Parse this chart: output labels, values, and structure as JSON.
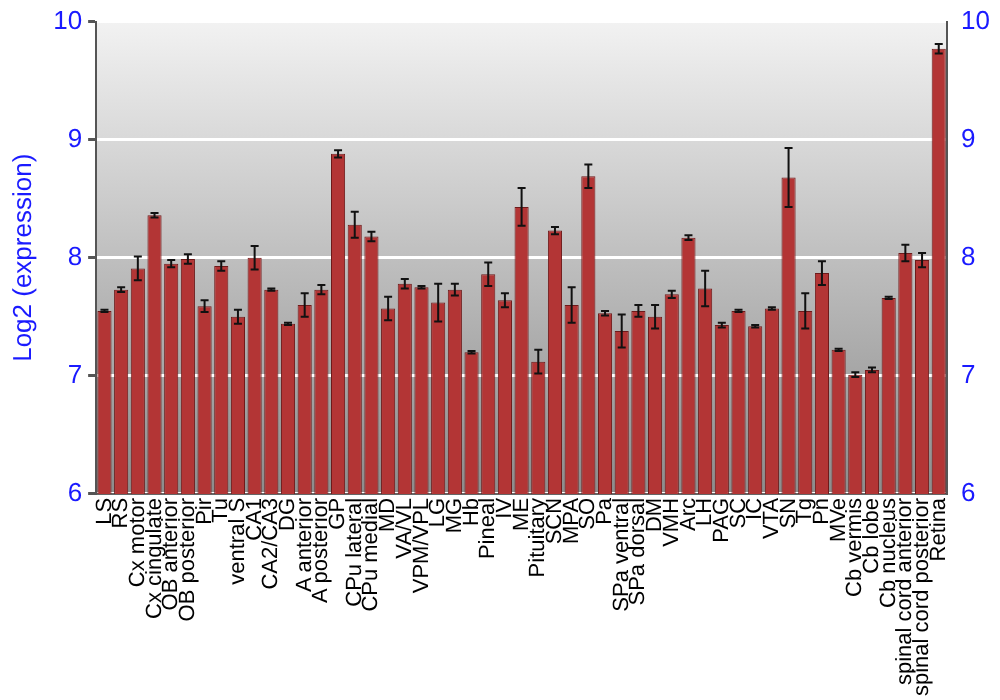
{
  "chart_data": {
    "type": "bar",
    "ylabel": "Log2 (expression)",
    "categories": [
      "LS",
      "RS",
      "Cx motor",
      "Cx cingulate",
      "OB anterior",
      "OB posterior",
      "Pir",
      "Tu",
      "ventral S",
      "CA1",
      "CA2/CA3",
      "DG",
      "A anterior",
      "A posterior",
      "GP",
      "CPu lateral",
      "CPu medial",
      "MD",
      "VA/VL",
      "VPM/VPL",
      "LG",
      "MG",
      "Hb",
      "Pineal",
      "IV",
      "ME",
      "Pituitary",
      "SCN",
      "MPA",
      "SO",
      "Pa",
      "SPa ventral",
      "SPa dorsal",
      "DM",
      "VMH",
      "Arc",
      "LH",
      "PAG",
      "SC",
      "IC",
      "VTA",
      "SN",
      "Tg",
      "Pn",
      "MVe",
      "Cb vermis",
      "Cb lobe",
      "Cb nucleus",
      "spinal cord anterior",
      "spinal cord posterior",
      "Retina"
    ],
    "values": [
      7.55,
      7.73,
      7.91,
      8.36,
      7.95,
      7.99,
      7.59,
      7.93,
      7.5,
      8.0,
      7.73,
      7.44,
      7.6,
      7.73,
      8.88,
      8.28,
      8.18,
      7.57,
      7.78,
      7.75,
      7.62,
      7.73,
      7.2,
      7.86,
      7.64,
      8.43,
      7.12,
      8.23,
      7.6,
      8.69,
      7.53,
      7.38,
      7.55,
      7.5,
      7.69,
      8.17,
      7.74,
      7.43,
      7.55,
      7.42,
      7.57,
      8.68,
      7.55,
      7.87,
      7.22,
      7.01,
      7.05,
      7.66,
      8.04,
      7.98,
      9.77
    ],
    "errors": [
      0.01,
      0.02,
      0.1,
      0.02,
      0.03,
      0.04,
      0.05,
      0.04,
      0.06,
      0.1,
      0.01,
      0.01,
      0.1,
      0.04,
      0.03,
      0.11,
      0.04,
      0.1,
      0.04,
      0.01,
      0.16,
      0.05,
      0.01,
      0.1,
      0.06,
      0.16,
      0.1,
      0.03,
      0.15,
      0.1,
      0.02,
      0.14,
      0.05,
      0.1,
      0.03,
      0.02,
      0.15,
      0.02,
      0.01,
      0.01,
      0.01,
      0.25,
      0.15,
      0.1,
      0.01,
      0.02,
      0.02,
      0.01,
      0.07,
      0.06,
      0.04
    ],
    "color": "#b33535",
    "ylim": [
      6,
      10
    ],
    "yticks": [
      6,
      7,
      8,
      9,
      10
    ],
    "y2lim": [
      6,
      10
    ],
    "y2ticks": [
      6,
      7,
      8,
      9,
      10
    ],
    "grid": "y",
    "legend": false
  }
}
